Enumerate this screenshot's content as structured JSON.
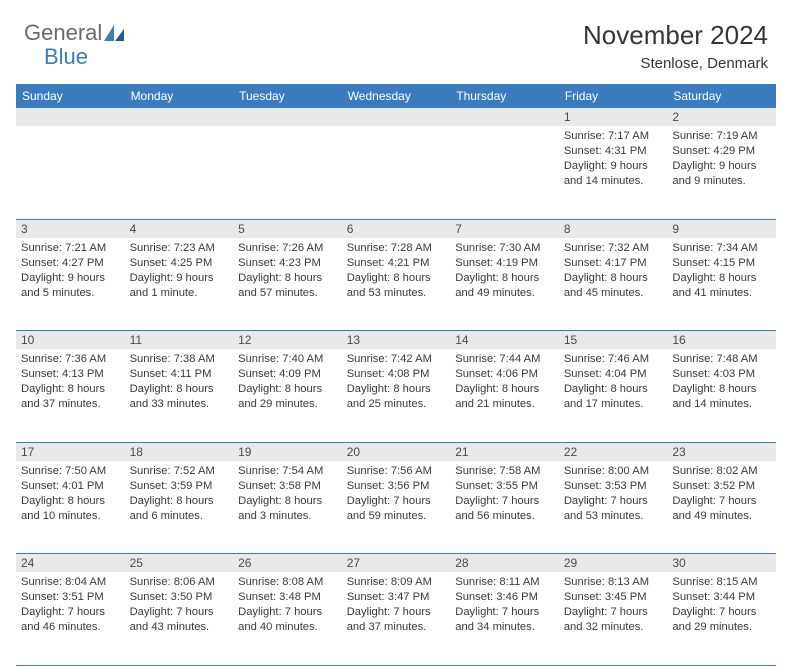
{
  "logo": {
    "text1": "General",
    "text2": "Blue",
    "icon_color": "#3b7bbf"
  },
  "title": "November 2024",
  "subtitle": "Stenlose, Denmark",
  "header_bg": "#3b7bbf",
  "header_text_color": "#ffffff",
  "daynum_bg": "#e9e9e9",
  "border_color": "#3b7bbf",
  "day_headers": [
    "Sunday",
    "Monday",
    "Tuesday",
    "Wednesday",
    "Thursday",
    "Friday",
    "Saturday"
  ],
  "weeks": [
    [
      null,
      null,
      null,
      null,
      null,
      {
        "n": "1",
        "sr": "7:17 AM",
        "ss": "4:31 PM",
        "dl": "9 hours and 14 minutes."
      },
      {
        "n": "2",
        "sr": "7:19 AM",
        "ss": "4:29 PM",
        "dl": "9 hours and 9 minutes."
      }
    ],
    [
      {
        "n": "3",
        "sr": "7:21 AM",
        "ss": "4:27 PM",
        "dl": "9 hours and 5 minutes."
      },
      {
        "n": "4",
        "sr": "7:23 AM",
        "ss": "4:25 PM",
        "dl": "9 hours and 1 minute."
      },
      {
        "n": "5",
        "sr": "7:26 AM",
        "ss": "4:23 PM",
        "dl": "8 hours and 57 minutes."
      },
      {
        "n": "6",
        "sr": "7:28 AM",
        "ss": "4:21 PM",
        "dl": "8 hours and 53 minutes."
      },
      {
        "n": "7",
        "sr": "7:30 AM",
        "ss": "4:19 PM",
        "dl": "8 hours and 49 minutes."
      },
      {
        "n": "8",
        "sr": "7:32 AM",
        "ss": "4:17 PM",
        "dl": "8 hours and 45 minutes."
      },
      {
        "n": "9",
        "sr": "7:34 AM",
        "ss": "4:15 PM",
        "dl": "8 hours and 41 minutes."
      }
    ],
    [
      {
        "n": "10",
        "sr": "7:36 AM",
        "ss": "4:13 PM",
        "dl": "8 hours and 37 minutes."
      },
      {
        "n": "11",
        "sr": "7:38 AM",
        "ss": "4:11 PM",
        "dl": "8 hours and 33 minutes."
      },
      {
        "n": "12",
        "sr": "7:40 AM",
        "ss": "4:09 PM",
        "dl": "8 hours and 29 minutes."
      },
      {
        "n": "13",
        "sr": "7:42 AM",
        "ss": "4:08 PM",
        "dl": "8 hours and 25 minutes."
      },
      {
        "n": "14",
        "sr": "7:44 AM",
        "ss": "4:06 PM",
        "dl": "8 hours and 21 minutes."
      },
      {
        "n": "15",
        "sr": "7:46 AM",
        "ss": "4:04 PM",
        "dl": "8 hours and 17 minutes."
      },
      {
        "n": "16",
        "sr": "7:48 AM",
        "ss": "4:03 PM",
        "dl": "8 hours and 14 minutes."
      }
    ],
    [
      {
        "n": "17",
        "sr": "7:50 AM",
        "ss": "4:01 PM",
        "dl": "8 hours and 10 minutes."
      },
      {
        "n": "18",
        "sr": "7:52 AM",
        "ss": "3:59 PM",
        "dl": "8 hours and 6 minutes."
      },
      {
        "n": "19",
        "sr": "7:54 AM",
        "ss": "3:58 PM",
        "dl": "8 hours and 3 minutes."
      },
      {
        "n": "20",
        "sr": "7:56 AM",
        "ss": "3:56 PM",
        "dl": "7 hours and 59 minutes."
      },
      {
        "n": "21",
        "sr": "7:58 AM",
        "ss": "3:55 PM",
        "dl": "7 hours and 56 minutes."
      },
      {
        "n": "22",
        "sr": "8:00 AM",
        "ss": "3:53 PM",
        "dl": "7 hours and 53 minutes."
      },
      {
        "n": "23",
        "sr": "8:02 AM",
        "ss": "3:52 PM",
        "dl": "7 hours and 49 minutes."
      }
    ],
    [
      {
        "n": "24",
        "sr": "8:04 AM",
        "ss": "3:51 PM",
        "dl": "7 hours and 46 minutes."
      },
      {
        "n": "25",
        "sr": "8:06 AM",
        "ss": "3:50 PM",
        "dl": "7 hours and 43 minutes."
      },
      {
        "n": "26",
        "sr": "8:08 AM",
        "ss": "3:48 PM",
        "dl": "7 hours and 40 minutes."
      },
      {
        "n": "27",
        "sr": "8:09 AM",
        "ss": "3:47 PM",
        "dl": "7 hours and 37 minutes."
      },
      {
        "n": "28",
        "sr": "8:11 AM",
        "ss": "3:46 PM",
        "dl": "7 hours and 34 minutes."
      },
      {
        "n": "29",
        "sr": "8:13 AM",
        "ss": "3:45 PM",
        "dl": "7 hours and 32 minutes."
      },
      {
        "n": "30",
        "sr": "8:15 AM",
        "ss": "3:44 PM",
        "dl": "7 hours and 29 minutes."
      }
    ]
  ],
  "labels": {
    "sunrise": "Sunrise:",
    "sunset": "Sunset:",
    "daylight": "Daylight:"
  }
}
